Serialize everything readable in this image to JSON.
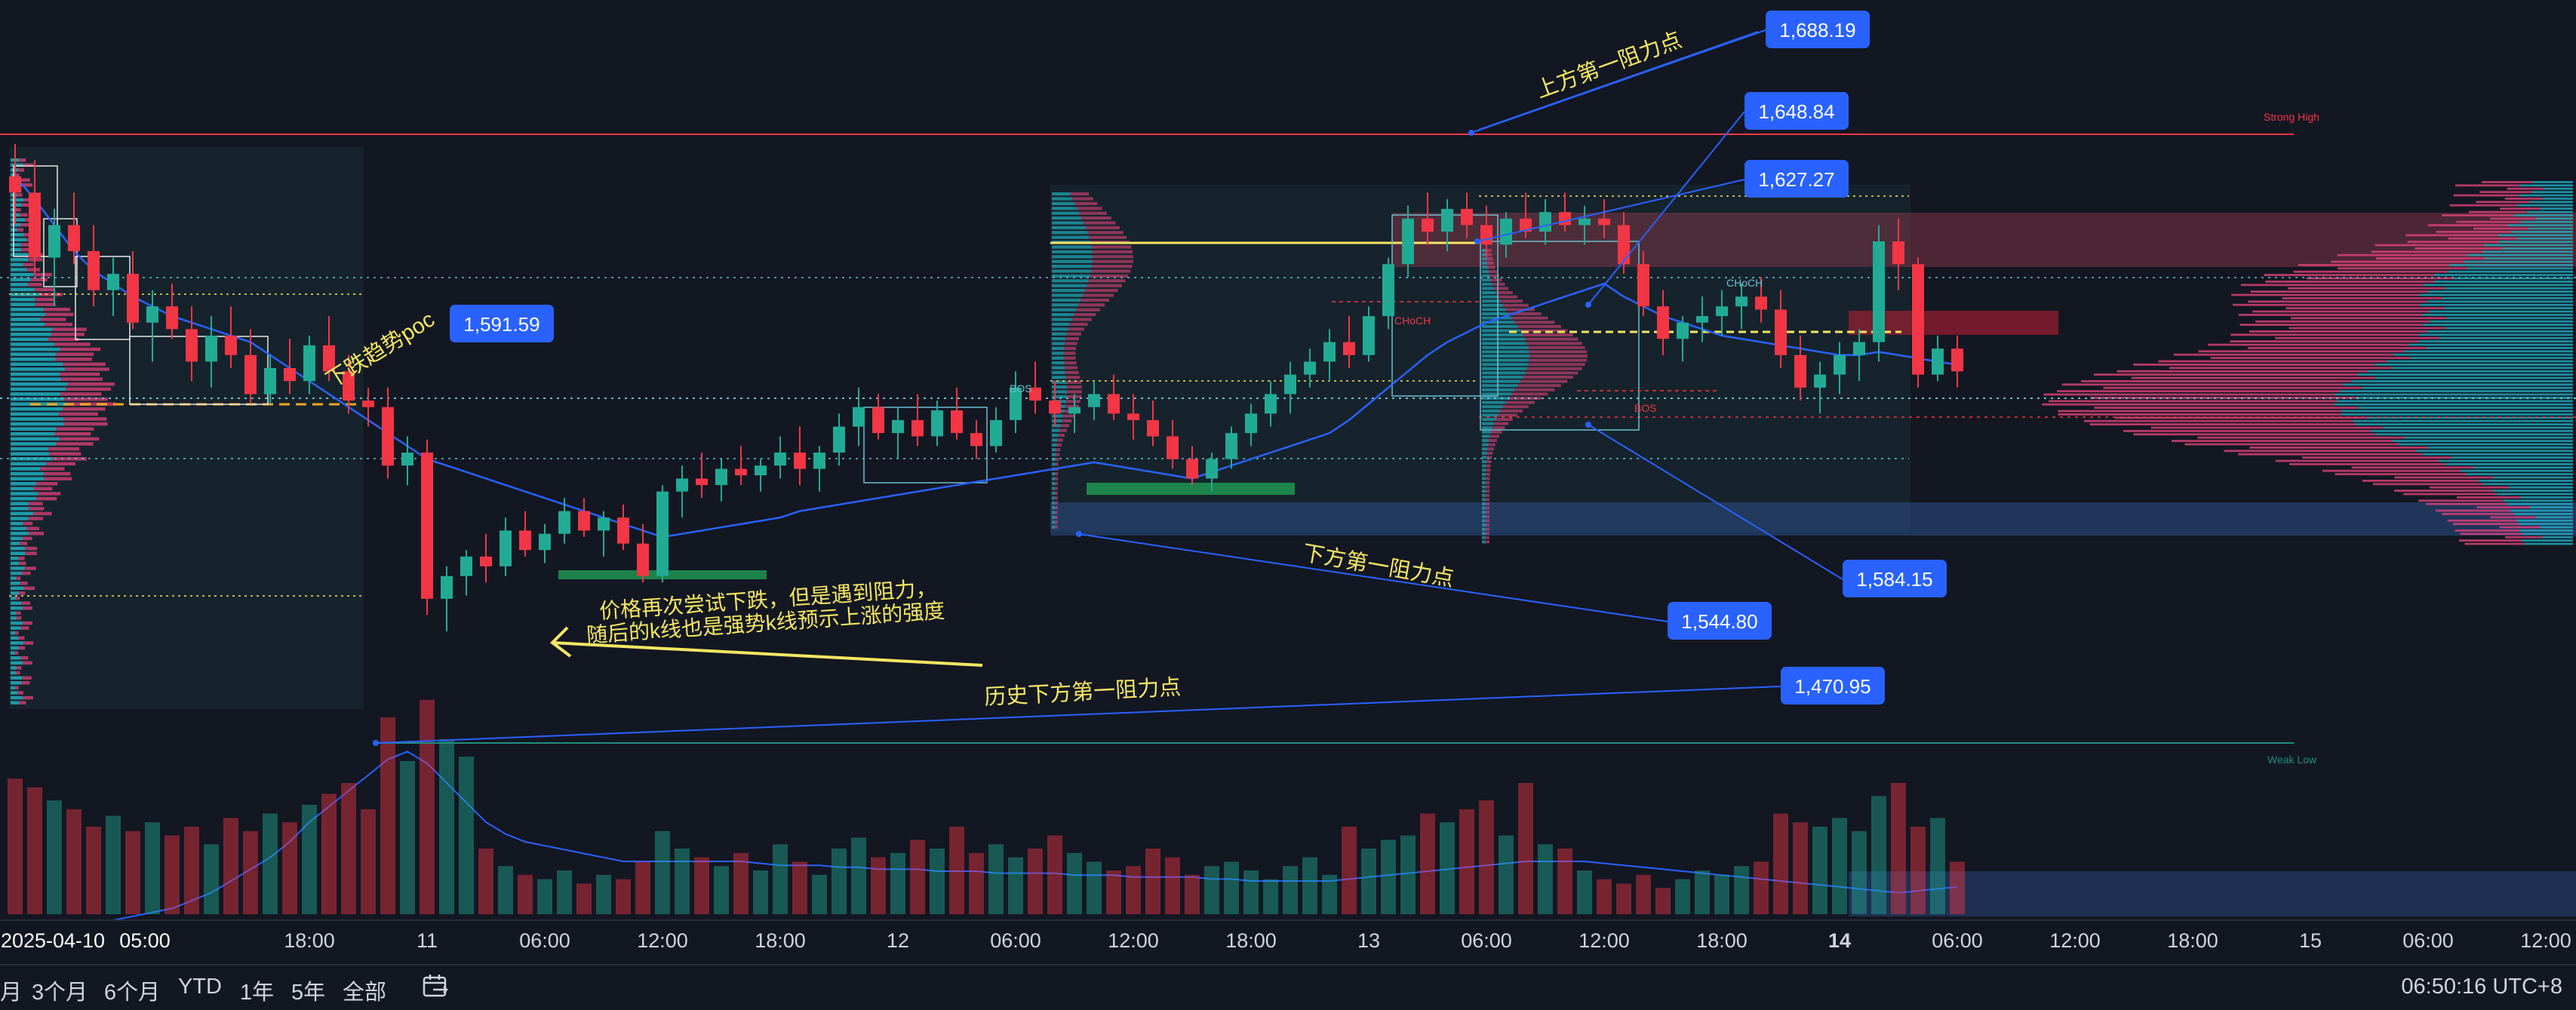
{
  "chart_data": {
    "type": "candlestick",
    "y_range": [
      1440,
      1700
    ],
    "x_axis_labels": [
      {
        "label": "2025-04-10",
        "x": 0
      },
      {
        "label": "05:00",
        "x": 2
      },
      {
        "label": "18:00",
        "x": 15
      },
      {
        "label": "11",
        "x": 21
      },
      {
        "label": "06:00",
        "x": 27
      },
      {
        "label": "12:00",
        "x": 33
      },
      {
        "label": "18:00",
        "x": 39
      },
      {
        "label": "12",
        "x": 45
      },
      {
        "label": "06:00",
        "x": 51
      },
      {
        "label": "12:00",
        "x": 57
      },
      {
        "label": "18:00",
        "x": 63
      },
      {
        "label": "13",
        "x": 69
      },
      {
        "label": "06:00",
        "x": 75
      },
      {
        "label": "12:00",
        "x": 81
      },
      {
        "label": "18:00",
        "x": 87
      },
      {
        "label": "14",
        "x": 93
      },
      {
        "label": "06:00",
        "x": 99
      },
      {
        "label": "12:00",
        "x": 105
      },
      {
        "label": "18:00",
        "x": 111
      },
      {
        "label": "15",
        "x": 117
      },
      {
        "label": "06:00",
        "x": 123
      },
      {
        "label": "12:00",
        "x": 129
      }
    ],
    "candles": [
      [
        0,
        1655,
        1665,
        1640,
        1650
      ],
      [
        1,
        1650,
        1660,
        1625,
        1630
      ],
      [
        2,
        1630,
        1645,
        1615,
        1640
      ],
      [
        3,
        1640,
        1650,
        1628,
        1632
      ],
      [
        4,
        1632,
        1640,
        1615,
        1620
      ],
      [
        5,
        1620,
        1630,
        1612,
        1625
      ],
      [
        6,
        1625,
        1632,
        1608,
        1610
      ],
      [
        7,
        1610,
        1620,
        1598,
        1615
      ],
      [
        8,
        1615,
        1622,
        1605,
        1608
      ],
      [
        9,
        1608,
        1615,
        1592,
        1598
      ],
      [
        10,
        1598,
        1612,
        1590,
        1606
      ],
      [
        11,
        1606,
        1615,
        1596,
        1600
      ],
      [
        12,
        1600,
        1608,
        1585,
        1588
      ],
      [
        13,
        1588,
        1600,
        1585,
        1596
      ],
      [
        14,
        1596,
        1605,
        1588,
        1592
      ],
      [
        15,
        1592,
        1606,
        1588,
        1603
      ],
      [
        16,
        1603,
        1612,
        1592,
        1595
      ],
      [
        17,
        1595,
        1600,
        1582,
        1586
      ],
      [
        18,
        1586,
        1590,
        1578,
        1584
      ],
      [
        19,
        1584,
        1590,
        1562,
        1566
      ],
      [
        20,
        1566,
        1575,
        1560,
        1570
      ],
      [
        21,
        1570,
        1574,
        1520,
        1525
      ],
      [
        22,
        1525,
        1535,
        1515,
        1532
      ],
      [
        23,
        1532,
        1540,
        1526,
        1538
      ],
      [
        24,
        1538,
        1545,
        1530,
        1535
      ],
      [
        25,
        1535,
        1550,
        1532,
        1546
      ],
      [
        26,
        1546,
        1552,
        1538,
        1540
      ],
      [
        27,
        1540,
        1548,
        1536,
        1545
      ],
      [
        28,
        1545,
        1556,
        1542,
        1552
      ],
      [
        29,
        1552,
        1556,
        1544,
        1546
      ],
      [
        30,
        1546,
        1552,
        1538,
        1550
      ],
      [
        31,
        1550,
        1554,
        1540,
        1542
      ],
      [
        32,
        1542,
        1548,
        1530,
        1532
      ],
      [
        33,
        1532,
        1560,
        1530,
        1558
      ],
      [
        34,
        1558,
        1566,
        1550,
        1562
      ],
      [
        35,
        1562,
        1570,
        1556,
        1560
      ],
      [
        36,
        1560,
        1568,
        1555,
        1565
      ],
      [
        37,
        1565,
        1572,
        1560,
        1563
      ],
      [
        38,
        1563,
        1568,
        1558,
        1566
      ],
      [
        39,
        1566,
        1575,
        1562,
        1570
      ],
      [
        40,
        1570,
        1578,
        1560,
        1565
      ],
      [
        41,
        1565,
        1572,
        1558,
        1570
      ],
      [
        42,
        1570,
        1582,
        1566,
        1578
      ],
      [
        43,
        1578,
        1590,
        1572,
        1584
      ],
      [
        44,
        1584,
        1588,
        1574,
        1576
      ],
      [
        45,
        1576,
        1584,
        1568,
        1580
      ],
      [
        46,
        1580,
        1588,
        1572,
        1575
      ],
      [
        47,
        1575,
        1586,
        1572,
        1583
      ],
      [
        48,
        1583,
        1590,
        1574,
        1576
      ],
      [
        49,
        1576,
        1580,
        1568,
        1572
      ],
      [
        50,
        1572,
        1584,
        1570,
        1580
      ],
      [
        51,
        1580,
        1595,
        1576,
        1590
      ],
      [
        52,
        1590,
        1598,
        1582,
        1586
      ],
      [
        53,
        1586,
        1592,
        1578,
        1582
      ],
      [
        54,
        1582,
        1588,
        1576,
        1584
      ],
      [
        55,
        1584,
        1592,
        1580,
        1588
      ],
      [
        56,
        1588,
        1594,
        1580,
        1582
      ],
      [
        57,
        1582,
        1588,
        1574,
        1580
      ],
      [
        58,
        1580,
        1586,
        1572,
        1575
      ],
      [
        59,
        1575,
        1580,
        1565,
        1568
      ],
      [
        60,
        1568,
        1572,
        1560,
        1562
      ],
      [
        61,
        1562,
        1570,
        1558,
        1568
      ],
      [
        62,
        1568,
        1578,
        1565,
        1576
      ],
      [
        63,
        1576,
        1585,
        1572,
        1582
      ],
      [
        64,
        1582,
        1592,
        1578,
        1588
      ],
      [
        65,
        1588,
        1598,
        1582,
        1594
      ],
      [
        66,
        1594,
        1602,
        1590,
        1598
      ],
      [
        67,
        1598,
        1608,
        1592,
        1604
      ],
      [
        68,
        1604,
        1612,
        1596,
        1600
      ],
      [
        69,
        1600,
        1615,
        1598,
        1612
      ],
      [
        70,
        1612,
        1630,
        1608,
        1628
      ],
      [
        71,
        1628,
        1646,
        1624,
        1642
      ],
      [
        72,
        1642,
        1650,
        1634,
        1638
      ],
      [
        73,
        1638,
        1648,
        1632,
        1645
      ],
      [
        74,
        1645,
        1650,
        1636,
        1640
      ],
      [
        75,
        1640,
        1646,
        1630,
        1634
      ],
      [
        76,
        1634,
        1644,
        1630,
        1642
      ],
      [
        77,
        1642,
        1650,
        1636,
        1638
      ],
      [
        78,
        1638,
        1648,
        1634,
        1644
      ],
      [
        79,
        1644,
        1650,
        1638,
        1640
      ],
      [
        80,
        1640,
        1646,
        1634,
        1642
      ],
      [
        81,
        1642,
        1648,
        1636,
        1640
      ],
      [
        82,
        1640,
        1644,
        1625,
        1628
      ],
      [
        83,
        1628,
        1632,
        1612,
        1615
      ],
      [
        84,
        1615,
        1620,
        1600,
        1605
      ],
      [
        85,
        1605,
        1612,
        1598,
        1610
      ],
      [
        86,
        1610,
        1618,
        1604,
        1612
      ],
      [
        87,
        1612,
        1620,
        1606,
        1615
      ],
      [
        88,
        1615,
        1622,
        1608,
        1618
      ],
      [
        89,
        1618,
        1624,
        1610,
        1614
      ],
      [
        90,
        1614,
        1620,
        1596,
        1600
      ],
      [
        91,
        1600,
        1606,
        1586,
        1590
      ],
      [
        92,
        1590,
        1598,
        1582,
        1594
      ],
      [
        93,
        1594,
        1604,
        1588,
        1600
      ],
      [
        94,
        1600,
        1608,
        1592,
        1604
      ],
      [
        95,
        1604,
        1640,
        1598,
        1635
      ],
      [
        96,
        1635,
        1642,
        1620,
        1628
      ],
      [
        97,
        1628,
        1630,
        1590,
        1594
      ],
      [
        98,
        1594,
        1606,
        1592,
        1602
      ],
      [
        99,
        1602,
        1606,
        1590,
        1595
      ]
    ],
    "volume": [
      62,
      58,
      52,
      48,
      40,
      45,
      38,
      42,
      36,
      40,
      32,
      44,
      38,
      46,
      42,
      50,
      55,
      60,
      48,
      90,
      70,
      98,
      80,
      72,
      30,
      22,
      18,
      16,
      20,
      14,
      18,
      16,
      24,
      38,
      30,
      26,
      22,
      28,
      20,
      32,
      24,
      18,
      30,
      35,
      26,
      28,
      34,
      30,
      40,
      28,
      32,
      26,
      30,
      36,
      28,
      24,
      20,
      22,
      30,
      26,
      18,
      22,
      24,
      20,
      16,
      22,
      26,
      18,
      40,
      30,
      34,
      36,
      46,
      42,
      48,
      52,
      36,
      60,
      32,
      30,
      20,
      16,
      14,
      18,
      12,
      16,
      20,
      18,
      22,
      24,
      46,
      42,
      40,
      44,
      38,
      54,
      60,
      40,
      44,
      24
    ],
    "price_labels": [
      "1,688.19",
      "1,648.84",
      "1,627.27",
      "1,591.59",
      "1,584.15",
      "1,544.80",
      "1,470.95"
    ],
    "zone_labels": {
      "strong_high": "Strong High",
      "weak_low": "Weak Low",
      "choch": "CHoCH",
      "bos": "BOS"
    },
    "annotations": {
      "upper_first_resistance": "上方第一阻力点",
      "downtrend_poc": "下跌趋势poc",
      "lower_first_resistance": "下方第一阻力点",
      "historical_lower_resistance": "历史下方第一阻力点",
      "price_note_line1": "价格再次尝试下跌，但是遇到阻力，",
      "price_note_line2": "随后的k线也是强势k线预示上涨的强度"
    },
    "colors": {
      "up": "#22ab94",
      "down": "#f23645",
      "vwap": "#2962ff",
      "label": "#2962ff",
      "annot": "#f5e663"
    }
  },
  "bottombar": {
    "ranges": [
      "月",
      "3个月",
      "6个月",
      "YTD",
      "1年",
      "5年",
      "全部"
    ],
    "clock": "06:50:16 UTC+8"
  }
}
